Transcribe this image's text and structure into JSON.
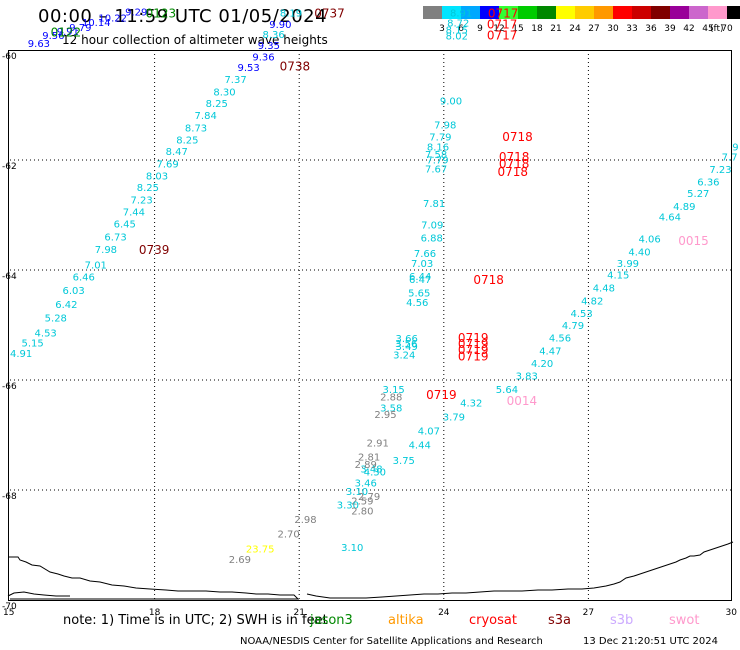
{
  "header": {
    "title": "00:00 – 11:59 UTC 01/05/2024",
    "subtitle": "12 hour collection of altimeter wave heights"
  },
  "colorbar": {
    "ticks": [
      "3",
      "6",
      "9",
      "12",
      "15",
      "18",
      "21",
      "24",
      "27",
      "30",
      "33",
      "36",
      "39",
      "42",
      "45",
      "70"
    ],
    "unit": "(ft)",
    "colors": [
      "#808080",
      "#00e5ff",
      "#00a8ff",
      "#0000ff",
      "#33ff33",
      "#00cc00",
      "#008800",
      "#ffff00",
      "#ffcc00",
      "#ff9900",
      "#ff0000",
      "#cc0000",
      "#800000",
      "#990099",
      "#cc66cc",
      "#ff99cc",
      "#000000"
    ]
  },
  "footer": {
    "note": "note:  1) Time is in UTC;  2) SWH is in feet",
    "satellites": [
      {
        "name": "jason3",
        "color": "#008800",
        "left": 310
      },
      {
        "name": "altika",
        "color": "#ff9900",
        "left": 388
      },
      {
        "name": "cryosat",
        "color": "#ff0000",
        "left": 469
      },
      {
        "name": "s3a",
        "color": "#800000",
        "left": 548
      },
      {
        "name": "s3b",
        "color": "#ccaaff",
        "left": 610
      },
      {
        "name": "swot",
        "color": "#ff99cc",
        "left": 669
      }
    ],
    "credit": "NOAA/NESDIS Center for Satellite Applications and Research",
    "timestamp": "13 Dec 21:20:51 UTC 2024"
  },
  "chart_data": {
    "type": "scatter",
    "title": "00:00 – 11:59 UTC 01/05/2024",
    "subtitle": "12 hour collection of altimeter wave heights",
    "xlim": [
      15,
      30
    ],
    "ylim": [
      -70,
      -60
    ],
    "x_ticks": [
      15,
      18,
      21,
      24,
      27,
      30
    ],
    "y_ticks": [
      -60,
      -62,
      -64,
      -66,
      -68,
      -70
    ],
    "x_tick_labels": [
      "15",
      "18",
      "21",
      "24",
      "27",
      "30"
    ],
    "y_tick_labels": [
      "-60",
      "-62",
      "-64",
      "-66",
      "-68",
      "-70"
    ],
    "grid": true,
    "colors": {
      "sky": "#00c8d8",
      "blue": "#0000ff",
      "green": "#008800",
      "gray": "#808080",
      "yellow": "#ffff00",
      "red": "#ff0000",
      "maroon": "#800000",
      "pink": "#ff99cc"
    },
    "points": [
      {
        "x": 15.23,
        "y": -65.51,
        "t": "4.91",
        "c": "sky"
      },
      {
        "x": 15.47,
        "y": -65.32,
        "t": "5.15",
        "c": "sky"
      },
      {
        "x": 15.74,
        "y": -65.14,
        "t": "4.53",
        "c": "sky"
      },
      {
        "x": 15.95,
        "y": -64.86,
        "t": "5.28",
        "c": "sky"
      },
      {
        "x": 16.17,
        "y": -64.62,
        "t": "6.42",
        "c": "sky"
      },
      {
        "x": 16.32,
        "y": -64.36,
        "t": "6.03",
        "c": "sky"
      },
      {
        "x": 16.53,
        "y": -64.12,
        "t": "6.46",
        "c": "sky"
      },
      {
        "x": 16.78,
        "y": -63.9,
        "t": "7.01",
        "c": "sky"
      },
      {
        "x": 16.99,
        "y": -63.62,
        "t": "7.98",
        "c": "sky"
      },
      {
        "x": 17.19,
        "y": -63.39,
        "t": "6.73",
        "c": "sky"
      },
      {
        "x": 17.38,
        "y": -63.15,
        "t": "6.45",
        "c": "sky"
      },
      {
        "x": 17.57,
        "y": -62.94,
        "t": "7.44",
        "c": "sky"
      },
      {
        "x": 17.73,
        "y": -62.72,
        "t": "7.23",
        "c": "sky"
      },
      {
        "x": 17.86,
        "y": -62.49,
        "t": "8.25",
        "c": "sky"
      },
      {
        "x": 18.05,
        "y": -62.28,
        "t": "8.03",
        "c": "sky"
      },
      {
        "x": 18.27,
        "y": -62.06,
        "t": "7.69",
        "c": "sky"
      },
      {
        "x": 18.46,
        "y": -61.84,
        "t": "8.47",
        "c": "sky"
      },
      {
        "x": 18.68,
        "y": -61.63,
        "t": "8.25",
        "c": "sky"
      },
      {
        "x": 18.86,
        "y": -61.41,
        "t": "8.73",
        "c": "sky"
      },
      {
        "x": 19.06,
        "y": -61.18,
        "t": "7.84",
        "c": "sky"
      },
      {
        "x": 19.29,
        "y": -60.96,
        "t": "8.25",
        "c": "sky"
      },
      {
        "x": 19.45,
        "y": -60.75,
        "t": "8.30",
        "c": "sky"
      },
      {
        "x": 19.68,
        "y": -60.53,
        "t": "7.37",
        "c": "sky"
      },
      {
        "x": 19.95,
        "y": -60.31,
        "t": "9.53",
        "c": "blue"
      },
      {
        "x": 20.26,
        "y": -60.12,
        "t": "9.36",
        "c": "blue"
      },
      {
        "x": 20.37,
        "y": -59.91,
        "t": "9.35",
        "c": "blue"
      },
      {
        "x": 20.47,
        "y": -59.71,
        "t": "8.36",
        "c": "sky"
      },
      {
        "x": 20.61,
        "y": -59.53,
        "t": "9.90",
        "c": "blue"
      },
      {
        "x": 20.83,
        "y": -59.32,
        "t": "8.19",
        "c": "sky"
      },
      {
        "x": 15.6,
        "y": -59.87,
        "t": "9.63",
        "c": "blue"
      },
      {
        "x": 15.9,
        "y": -59.73,
        "t": "9.56",
        "c": "blue"
      },
      {
        "x": 16.2,
        "y": -59.65,
        "t": "9.91",
        "c": "blue"
      },
      {
        "x": 16.46,
        "y": -59.58,
        "t": "9.79",
        "c": "blue"
      },
      {
        "x": 16.79,
        "y": -59.49,
        "t": "10.14",
        "c": "blue"
      },
      {
        "x": 17.13,
        "y": -59.41,
        "t": "10.22",
        "c": "blue"
      },
      {
        "x": 17.62,
        "y": -59.3,
        "t": "9.29",
        "c": "blue"
      },
      {
        "x": 24.36,
        "y": -59.32,
        "t": "8.91",
        "c": "sky"
      },
      {
        "x": 24.3,
        "y": -59.5,
        "t": "8.72",
        "c": "sky"
      },
      {
        "x": 24.27,
        "y": -59.63,
        "t": "8.15",
        "c": "sky"
      },
      {
        "x": 24.27,
        "y": -59.74,
        "t": "8.02",
        "c": "sky"
      },
      {
        "x": 24.15,
        "y": -60.92,
        "t": "9.00",
        "c": "sky"
      },
      {
        "x": 24.03,
        "y": -61.35,
        "t": "7.98",
        "c": "sky"
      },
      {
        "x": 23.93,
        "y": -61.57,
        "t": "7.79",
        "c": "sky"
      },
      {
        "x": 23.88,
        "y": -61.75,
        "t": "8.16",
        "c": "sky"
      },
      {
        "x": 23.84,
        "y": -61.89,
        "t": "7.58",
        "c": "sky"
      },
      {
        "x": 23.87,
        "y": -61.99,
        "t": "7.79",
        "c": "sky"
      },
      {
        "x": 23.84,
        "y": -62.15,
        "t": "7.67",
        "c": "sky"
      },
      {
        "x": 23.8,
        "y": -62.78,
        "t": "7.81",
        "c": "sky"
      },
      {
        "x": 23.76,
        "y": -63.17,
        "t": "7.09",
        "c": "sky"
      },
      {
        "x": 23.75,
        "y": -63.41,
        "t": "6.88",
        "c": "sky"
      },
      {
        "x": 23.61,
        "y": -63.69,
        "t": "7.66",
        "c": "sky"
      },
      {
        "x": 23.55,
        "y": -63.87,
        "t": "7.03",
        "c": "sky"
      },
      {
        "x": 23.51,
        "y": -64.11,
        "t": "6.44",
        "c": "sky"
      },
      {
        "x": 23.51,
        "y": -64.16,
        "t": "6.47",
        "c": "sky"
      },
      {
        "x": 23.49,
        "y": -64.41,
        "t": "5.65",
        "c": "sky"
      },
      {
        "x": 23.45,
        "y": -64.58,
        "t": "4.56",
        "c": "sky"
      },
      {
        "x": 23.23,
        "y": -65.24,
        "t": "3.66",
        "c": "sky"
      },
      {
        "x": 23.22,
        "y": -65.33,
        "t": "3.56",
        "c": "sky"
      },
      {
        "x": 23.23,
        "y": -65.38,
        "t": "3.49",
        "c": "sky"
      },
      {
        "x": 23.18,
        "y": -65.54,
        "t": "3.24",
        "c": "sky"
      },
      {
        "x": 22.96,
        "y": -66.16,
        "t": "3.15",
        "c": "sky"
      },
      {
        "x": 22.91,
        "y": -66.3,
        "t": "2.88",
        "c": "gray"
      },
      {
        "x": 22.91,
        "y": -66.5,
        "t": "3.58",
        "c": "sky"
      },
      {
        "x": 22.79,
        "y": -66.62,
        "t": "2.95",
        "c": "gray"
      },
      {
        "x": 22.63,
        "y": -67.14,
        "t": "2.91",
        "c": "gray"
      },
      {
        "x": 22.5,
        "y": -67.61,
        "t": "3.48",
        "c": "sky"
      },
      {
        "x": 22.38,
        "y": -67.86,
        "t": "3.46",
        "c": "sky"
      },
      {
        "x": 22.45,
        "y": -67.39,
        "t": "2.81",
        "c": "gray"
      },
      {
        "x": 22.38,
        "y": -67.53,
        "t": "2.89",
        "c": "gray"
      },
      {
        "x": 22.57,
        "y": -67.66,
        "t": "4.30",
        "c": "sky"
      },
      {
        "x": 22.2,
        "y": -68.02,
        "t": "3.10",
        "c": "sky"
      },
      {
        "x": 22.45,
        "y": -68.11,
        "t": "2.79",
        "c": "gray"
      },
      {
        "x": 22.31,
        "y": -68.19,
        "t": "2.59",
        "c": "gray"
      },
      {
        "x": 22.01,
        "y": -68.26,
        "t": "3.30",
        "c": "sky"
      },
      {
        "x": 22.31,
        "y": -68.37,
        "t": "2.80",
        "c": "gray"
      },
      {
        "x": 21.13,
        "y": -68.53,
        "t": "2.98",
        "c": "gray"
      },
      {
        "x": 20.78,
        "y": -68.79,
        "t": "2.70",
        "c": "gray"
      },
      {
        "x": 20.19,
        "y": -69.06,
        "t": "23.75",
        "c": "yellow"
      },
      {
        "x": 19.77,
        "y": -69.25,
        "t": "2.69",
        "c": "gray"
      },
      {
        "x": 22.1,
        "y": -69.04,
        "t": "3.10",
        "c": "sky"
      },
      {
        "x": 23.17,
        "y": -67.45,
        "t": "3.75",
        "c": "sky"
      },
      {
        "x": 23.5,
        "y": -67.17,
        "t": "4.44",
        "c": "sky"
      },
      {
        "x": 23.69,
        "y": -66.92,
        "t": "4.07",
        "c": "sky"
      },
      {
        "x": 24.21,
        "y": -66.66,
        "t": "3.79",
        "c": "sky"
      },
      {
        "x": 24.57,
        "y": -66.41,
        "t": "4.32",
        "c": "sky"
      },
      {
        "x": 25.31,
        "y": -66.16,
        "t": "5.64",
        "c": "sky"
      },
      {
        "x": 25.72,
        "y": -65.92,
        "t": "3.83",
        "c": "sky"
      },
      {
        "x": 26.04,
        "y": -65.69,
        "t": "4.20",
        "c": "sky"
      },
      {
        "x": 26.21,
        "y": -65.46,
        "t": "4.47",
        "c": "sky"
      },
      {
        "x": 26.41,
        "y": -65.23,
        "t": "4.56",
        "c": "sky"
      },
      {
        "x": 26.68,
        "y": -65.0,
        "t": "4.79",
        "c": "sky"
      },
      {
        "x": 26.86,
        "y": -64.78,
        "t": "4.53",
        "c": "sky"
      },
      {
        "x": 27.08,
        "y": -64.55,
        "t": "4.82",
        "c": "sky"
      },
      {
        "x": 27.32,
        "y": -64.32,
        "t": "4.48",
        "c": "sky"
      },
      {
        "x": 27.62,
        "y": -64.08,
        "t": "4.15",
        "c": "sky"
      },
      {
        "x": 27.82,
        "y": -63.87,
        "t": "3.99",
        "c": "sky"
      },
      {
        "x": 28.06,
        "y": -63.66,
        "t": "4.40",
        "c": "sky"
      },
      {
        "x": 28.27,
        "y": -63.43,
        "t": "4.06",
        "c": "sky"
      },
      {
        "x": 28.69,
        "y": -63.03,
        "t": "4.64",
        "c": "sky"
      },
      {
        "x": 28.99,
        "y": -62.84,
        "t": "4.89",
        "c": "sky"
      },
      {
        "x": 29.28,
        "y": -62.6,
        "t": "5.27",
        "c": "sky"
      },
      {
        "x": 29.49,
        "y": -62.39,
        "t": "6.36",
        "c": "sky"
      },
      {
        "x": 29.74,
        "y": -62.16,
        "t": "7.23",
        "c": "sky"
      },
      {
        "x": 29.93,
        "y": -61.94,
        "t": "7.7",
        "c": "sky"
      },
      {
        "x": 30.05,
        "y": -61.75,
        "t": "9",
        "c": "sky"
      }
    ],
    "labels": [
      {
        "x": 18.13,
        "y": -59.32,
        "t": "0123",
        "c": "green"
      },
      {
        "x": 16.16,
        "y": -59.66,
        "t": "0122",
        "c": "green"
      },
      {
        "x": 21.63,
        "y": -59.32,
        "t": "0737",
        "c": "maroon"
      },
      {
        "x": 20.91,
        "y": -60.28,
        "t": "0738",
        "c": "maroon"
      },
      {
        "x": 17.99,
        "y": -63.62,
        "t": "0739",
        "c": "maroon"
      },
      {
        "x": 25.23,
        "y": -59.32,
        "t": "0717",
        "c": "red"
      },
      {
        "x": 25.21,
        "y": -59.52,
        "t": "0717",
        "c": "red"
      },
      {
        "x": 25.21,
        "y": -59.72,
        "t": "0717",
        "c": "red"
      },
      {
        "x": 25.53,
        "y": -61.56,
        "t": "0718",
        "c": "red"
      },
      {
        "x": 25.46,
        "y": -61.93,
        "t": "0718",
        "c": "red"
      },
      {
        "x": 25.46,
        "y": -62.05,
        "t": "0718",
        "c": "red"
      },
      {
        "x": 25.43,
        "y": -62.2,
        "t": "0718",
        "c": "red"
      },
      {
        "x": 24.93,
        "y": -64.16,
        "t": "0718",
        "c": "red"
      },
      {
        "x": 24.61,
        "y": -65.22,
        "t": "0719",
        "c": "red"
      },
      {
        "x": 24.61,
        "y": -65.33,
        "t": "0719",
        "c": "red"
      },
      {
        "x": 24.61,
        "y": -65.44,
        "t": "0719",
        "c": "red"
      },
      {
        "x": 24.61,
        "y": -65.55,
        "t": "0719",
        "c": "red"
      },
      {
        "x": 23.95,
        "y": -66.25,
        "t": "0719",
        "c": "red"
      },
      {
        "x": 29.18,
        "y": -63.45,
        "t": "0015",
        "c": "pink"
      },
      {
        "x": 25.62,
        "y": -66.36,
        "t": "0014",
        "c": "pink"
      }
    ]
  }
}
